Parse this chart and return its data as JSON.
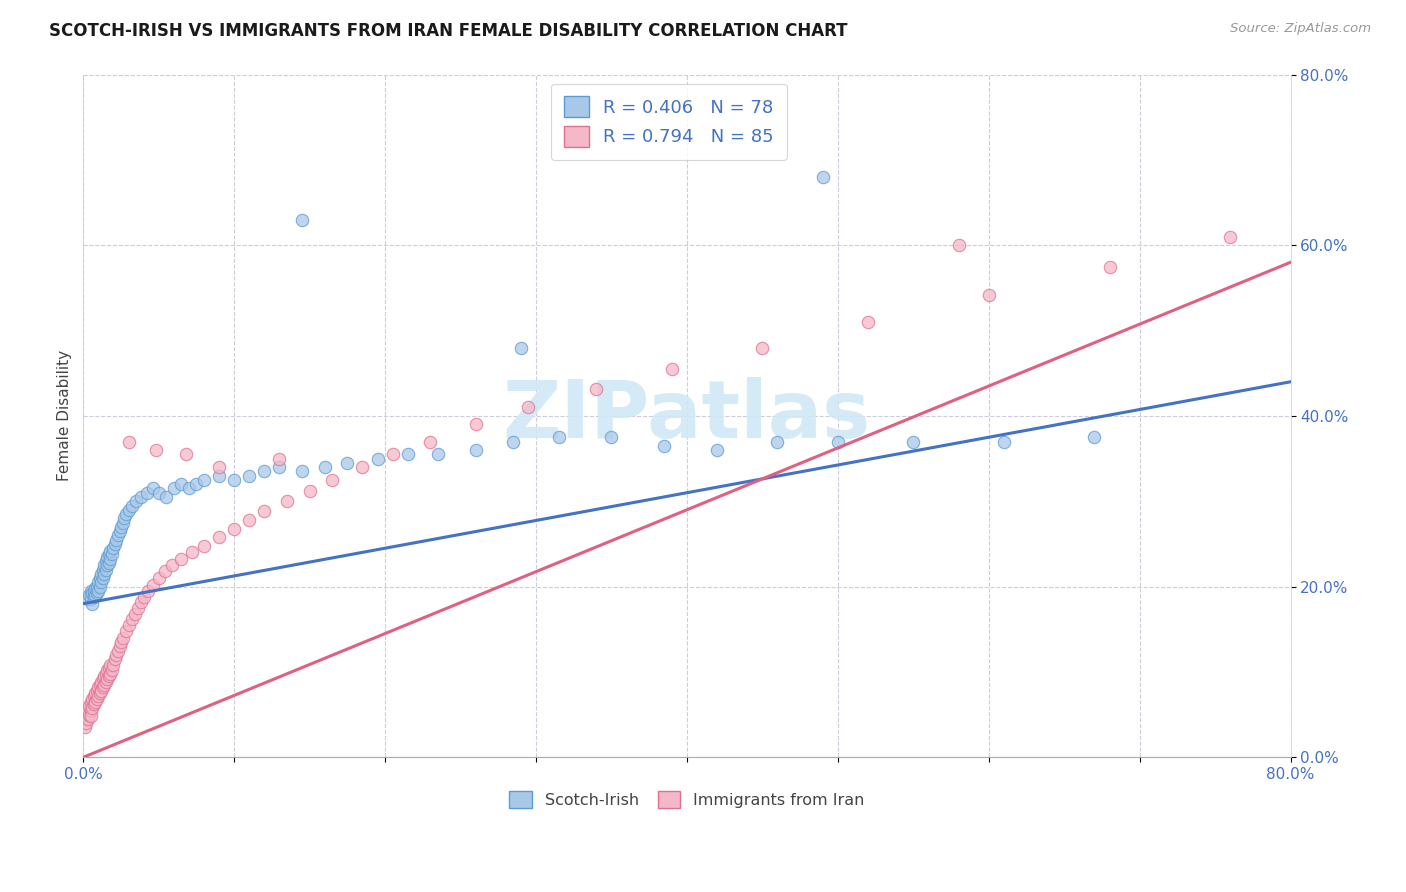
{
  "title": "SCOTCH-IRISH VS IMMIGRANTS FROM IRAN FEMALE DISABILITY CORRELATION CHART",
  "source": "Source: ZipAtlas.com",
  "ylabel": "Female Disability",
  "xlim": [
    0.0,
    0.8
  ],
  "ylim": [
    0.0,
    0.8
  ],
  "color_scotch": "#a8c8e8",
  "color_scotch_edge": "#5b9bd5",
  "color_iran": "#f4b8c8",
  "color_iran_edge": "#e07090",
  "color_line_scotch": "#4472c4",
  "color_line_iran": "#e06080",
  "watermark_color": "#d0e8f5",
  "background_color": "#ffffff",
  "grid_color": "#ccccdd",
  "scotch_x": [
    0.003,
    0.004,
    0.005,
    0.005,
    0.006,
    0.006,
    0.007,
    0.007,
    0.008,
    0.008,
    0.009,
    0.009,
    0.01,
    0.01,
    0.011,
    0.011,
    0.012,
    0.012,
    0.013,
    0.013,
    0.014,
    0.014,
    0.015,
    0.015,
    0.016,
    0.016,
    0.017,
    0.017,
    0.018,
    0.018,
    0.019,
    0.02,
    0.021,
    0.022,
    0.023,
    0.024,
    0.025,
    0.026,
    0.027,
    0.028,
    0.03,
    0.032,
    0.035,
    0.038,
    0.042,
    0.046,
    0.05,
    0.055,
    0.06,
    0.065,
    0.07,
    0.075,
    0.08,
    0.09,
    0.1,
    0.11,
    0.12,
    0.13,
    0.145,
    0.16,
    0.175,
    0.195,
    0.215,
    0.235,
    0.26,
    0.285,
    0.315,
    0.35,
    0.385,
    0.42,
    0.46,
    0.5,
    0.55,
    0.61,
    0.67,
    0.49,
    0.29,
    0.145
  ],
  "scotch_y": [
    0.185,
    0.19,
    0.195,
    0.185,
    0.18,
    0.192,
    0.188,
    0.195,
    0.19,
    0.198,
    0.192,
    0.2,
    0.195,
    0.205,
    0.2,
    0.21,
    0.205,
    0.215,
    0.21,
    0.22,
    0.215,
    0.225,
    0.22,
    0.23,
    0.225,
    0.235,
    0.228,
    0.238,
    0.232,
    0.242,
    0.238,
    0.245,
    0.25,
    0.255,
    0.26,
    0.265,
    0.27,
    0.275,
    0.28,
    0.285,
    0.29,
    0.295,
    0.3,
    0.305,
    0.31,
    0.315,
    0.31,
    0.305,
    0.315,
    0.32,
    0.315,
    0.32,
    0.325,
    0.33,
    0.325,
    0.33,
    0.335,
    0.34,
    0.335,
    0.34,
    0.345,
    0.35,
    0.355,
    0.355,
    0.36,
    0.37,
    0.375,
    0.375,
    0.365,
    0.36,
    0.37,
    0.37,
    0.37,
    0.37,
    0.375,
    0.68,
    0.48,
    0.63
  ],
  "iran_x": [
    0.001,
    0.001,
    0.002,
    0.002,
    0.003,
    0.003,
    0.004,
    0.004,
    0.005,
    0.005,
    0.005,
    0.006,
    0.006,
    0.007,
    0.007,
    0.008,
    0.008,
    0.009,
    0.009,
    0.01,
    0.01,
    0.011,
    0.011,
    0.012,
    0.012,
    0.013,
    0.013,
    0.014,
    0.014,
    0.015,
    0.015,
    0.016,
    0.016,
    0.017,
    0.017,
    0.018,
    0.018,
    0.019,
    0.02,
    0.021,
    0.022,
    0.023,
    0.024,
    0.025,
    0.026,
    0.028,
    0.03,
    0.032,
    0.034,
    0.036,
    0.038,
    0.04,
    0.043,
    0.046,
    0.05,
    0.054,
    0.059,
    0.065,
    0.072,
    0.08,
    0.09,
    0.1,
    0.11,
    0.12,
    0.135,
    0.15,
    0.165,
    0.185,
    0.205,
    0.23,
    0.26,
    0.295,
    0.34,
    0.39,
    0.45,
    0.52,
    0.6,
    0.68,
    0.76,
    0.58,
    0.13,
    0.09,
    0.068,
    0.048,
    0.03
  ],
  "iran_y": [
    0.035,
    0.045,
    0.04,
    0.05,
    0.045,
    0.055,
    0.05,
    0.06,
    0.055,
    0.048,
    0.065,
    0.058,
    0.068,
    0.062,
    0.072,
    0.065,
    0.075,
    0.068,
    0.078,
    0.072,
    0.082,
    0.075,
    0.085,
    0.078,
    0.088,
    0.082,
    0.092,
    0.085,
    0.095,
    0.088,
    0.098,
    0.092,
    0.102,
    0.095,
    0.105,
    0.098,
    0.108,
    0.102,
    0.108,
    0.115,
    0.12,
    0.125,
    0.13,
    0.135,
    0.14,
    0.148,
    0.155,
    0.162,
    0.168,
    0.175,
    0.182,
    0.188,
    0.195,
    0.202,
    0.21,
    0.218,
    0.225,
    0.232,
    0.24,
    0.248,
    0.258,
    0.268,
    0.278,
    0.288,
    0.3,
    0.312,
    0.325,
    0.34,
    0.355,
    0.37,
    0.39,
    0.41,
    0.432,
    0.455,
    0.48,
    0.51,
    0.542,
    0.575,
    0.61,
    0.6,
    0.35,
    0.34,
    0.355,
    0.36,
    0.37
  ]
}
